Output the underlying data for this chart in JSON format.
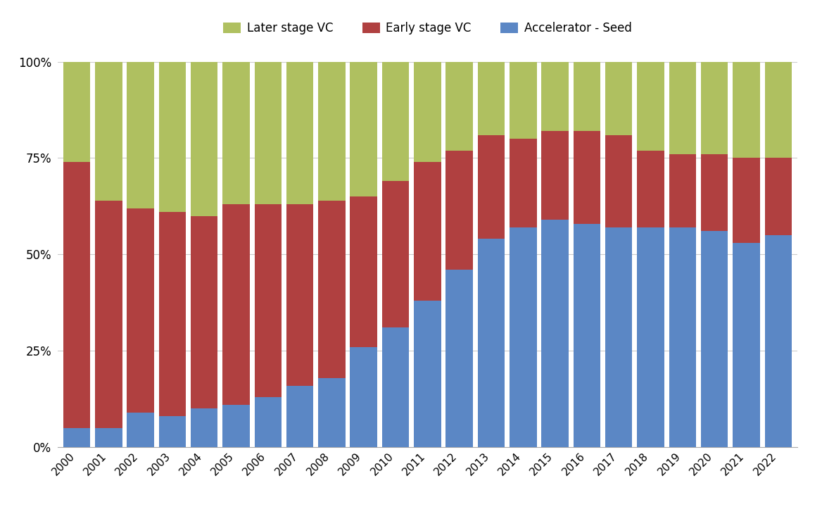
{
  "years": [
    2000,
    2001,
    2002,
    2003,
    2004,
    2005,
    2006,
    2007,
    2008,
    2009,
    2010,
    2011,
    2012,
    2013,
    2014,
    2015,
    2016,
    2017,
    2018,
    2019,
    2020,
    2021,
    2022
  ],
  "accelerator_seed": [
    5,
    5,
    9,
    8,
    10,
    11,
    13,
    16,
    18,
    26,
    31,
    38,
    46,
    54,
    57,
    59,
    58,
    57,
    57,
    57,
    56,
    53,
    55
  ],
  "early_stage_vc": [
    69,
    59,
    53,
    53,
    50,
    52,
    50,
    47,
    46,
    39,
    38,
    36,
    31,
    27,
    23,
    23,
    24,
    24,
    20,
    19,
    20,
    22,
    20
  ],
  "later_stage_vc": [
    26,
    36,
    38,
    39,
    40,
    37,
    37,
    37,
    36,
    35,
    31,
    26,
    23,
    19,
    20,
    18,
    18,
    19,
    23,
    24,
    24,
    25,
    25
  ],
  "colors": {
    "accelerator_seed": "#5b87c5",
    "early_stage_vc": "#b04040",
    "later_stage_vc": "#afc060"
  },
  "legend_labels": [
    "Later stage VC",
    "Early stage VC",
    "Accelerator - Seed"
  ],
  "yticks": [
    0,
    25,
    50,
    75,
    100
  ],
  "ytick_labels": [
    "0%",
    "25%",
    "50%",
    "75%",
    "100%"
  ],
  "background_color": "#ffffff",
  "grid_color": "#cccccc",
  "bar_width": 0.85,
  "figsize": [
    11.68,
    7.3
  ],
  "dpi": 100
}
